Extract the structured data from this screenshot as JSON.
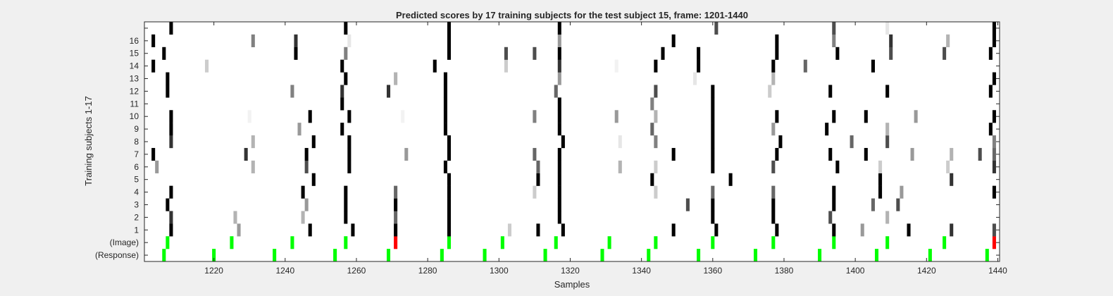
{
  "chart_data": {
    "type": "heatmap",
    "title": "Predicted scores by 17 training subjects for the test subject 15, frame: 1201-1440",
    "xlabel": "Samples",
    "ylabel": "Training subjects 1-17",
    "xlim": [
      1201,
      1440
    ],
    "x_ticks": [
      1220,
      1240,
      1260,
      1280,
      1300,
      1320,
      1340,
      1360,
      1380,
      1400,
      1420,
      1440
    ],
    "y_tick_labels": [
      "(Response)",
      "(Image)",
      "1",
      "2",
      "3",
      "4",
      "5",
      "6",
      "7",
      "8",
      "9",
      "10",
      "11",
      "12",
      "13",
      "14",
      "15",
      "16",
      ""
    ],
    "colors": {
      "background": "#ffffff",
      "plot_bg": "#ffffff",
      "stimulus_on": "#00ff00",
      "stimulus_red": "#ff0000",
      "high_score": "#000000"
    },
    "rows": [
      {
        "label": "(Response)",
        "kind": "stimulus",
        "marks": [
          [
            1206,
            "g"
          ],
          [
            1220,
            "g"
          ],
          [
            1237,
            "g"
          ],
          [
            1254,
            "g"
          ],
          [
            1269,
            "g"
          ],
          [
            1284,
            "g"
          ],
          [
            1296,
            "g"
          ],
          [
            1313,
            "g"
          ],
          [
            1329,
            "g"
          ],
          [
            1342,
            "g"
          ],
          [
            1356,
            "g"
          ],
          [
            1372,
            "g"
          ],
          [
            1390,
            "g"
          ],
          [
            1406,
            "g"
          ],
          [
            1421,
            "g"
          ],
          [
            1437,
            "g"
          ]
        ]
      },
      {
        "label": "(Image)",
        "kind": "stimulus",
        "marks": [
          [
            1207,
            "g"
          ],
          [
            1225,
            "g"
          ],
          [
            1242,
            "g"
          ],
          [
            1257,
            "g"
          ],
          [
            1271,
            "r"
          ],
          [
            1286,
            "g"
          ],
          [
            1301,
            "g"
          ],
          [
            1316,
            "g"
          ],
          [
            1331,
            "g"
          ],
          [
            1344,
            "g"
          ],
          [
            1360,
            "g"
          ],
          [
            1377,
            "g"
          ],
          [
            1394,
            "g"
          ],
          [
            1409,
            "g"
          ],
          [
            1425,
            "g"
          ],
          [
            1439,
            "r"
          ]
        ]
      },
      {
        "label": "1",
        "kind": "score",
        "marks": [
          [
            1208,
            1
          ],
          [
            1227,
            0.4
          ],
          [
            1247,
            1
          ],
          [
            1259,
            1
          ],
          [
            1271,
            1
          ],
          [
            1286,
            1
          ],
          [
            1303,
            0.2
          ],
          [
            1311,
            1
          ],
          [
            1318,
            1
          ],
          [
            1349,
            1
          ],
          [
            1361,
            1
          ],
          [
            1378,
            1
          ],
          [
            1394,
            1
          ],
          [
            1402,
            0.4
          ],
          [
            1415,
            1
          ],
          [
            1427,
            0.8
          ],
          [
            1439,
            0.7
          ]
        ]
      },
      {
        "label": "2",
        "kind": "score",
        "marks": [
          [
            1208,
            0.8
          ],
          [
            1226,
            0.3
          ],
          [
            1245,
            0.3
          ],
          [
            1257,
            1
          ],
          [
            1271,
            0.6
          ],
          [
            1286,
            1
          ],
          [
            1317,
            1
          ],
          [
            1360,
            1
          ],
          [
            1377,
            1
          ],
          [
            1393,
            0.7
          ],
          [
            1409,
            0.3
          ]
        ]
      },
      {
        "label": "3",
        "kind": "score",
        "marks": [
          [
            1207,
            1
          ],
          [
            1246,
            0.4
          ],
          [
            1257,
            1
          ],
          [
            1271,
            1
          ],
          [
            1286,
            1
          ],
          [
            1317,
            1
          ],
          [
            1353,
            0.7
          ],
          [
            1360,
            1
          ],
          [
            1377,
            1
          ],
          [
            1394,
            1
          ],
          [
            1405,
            0.6
          ],
          [
            1412,
            0.7
          ]
        ]
      },
      {
        "label": "4",
        "kind": "score",
        "marks": [
          [
            1208,
            1
          ],
          [
            1245,
            1
          ],
          [
            1257,
            1
          ],
          [
            1271,
            0.6
          ],
          [
            1286,
            1
          ],
          [
            1310,
            0.2
          ],
          [
            1317,
            1
          ],
          [
            1344,
            0.2
          ],
          [
            1360,
            0.6
          ],
          [
            1377,
            0.6
          ],
          [
            1394,
            1
          ],
          [
            1407,
            1
          ],
          [
            1413,
            0.4
          ],
          [
            1439,
            1
          ]
        ]
      },
      {
        "label": "5",
        "kind": "score",
        "marks": [
          [
            1248,
            1
          ],
          [
            1286,
            1
          ],
          [
            1311,
            1
          ],
          [
            1317,
            1
          ],
          [
            1343,
            1
          ],
          [
            1365,
            1
          ],
          [
            1407,
            1
          ],
          [
            1427,
            0.8
          ]
        ]
      },
      {
        "label": "6",
        "kind": "score",
        "marks": [
          [
            1204,
            0.4
          ],
          [
            1231,
            0.3
          ],
          [
            1246,
            0.7
          ],
          [
            1258,
            1
          ],
          [
            1285,
            1
          ],
          [
            1311,
            0.6
          ],
          [
            1317,
            1
          ],
          [
            1334,
            0.3
          ],
          [
            1344,
            0.2
          ],
          [
            1360,
            1
          ],
          [
            1377,
            0.7
          ],
          [
            1395,
            1
          ],
          [
            1407,
            0.2
          ],
          [
            1426,
            0.2
          ],
          [
            1439,
            0.8
          ]
        ]
      },
      {
        "label": "7",
        "kind": "score",
        "marks": [
          [
            1203,
            1
          ],
          [
            1229,
            0.8
          ],
          [
            1246,
            1
          ],
          [
            1258,
            1
          ],
          [
            1274,
            0.4
          ],
          [
            1286,
            1
          ],
          [
            1310,
            0.6
          ],
          [
            1317,
            1
          ],
          [
            1349,
            1
          ],
          [
            1360,
            1
          ],
          [
            1378,
            1
          ],
          [
            1393,
            1
          ],
          [
            1403,
            1
          ],
          [
            1416,
            0.4
          ],
          [
            1427,
            0.3
          ],
          [
            1435,
            0.7
          ],
          [
            1439,
            0.6
          ]
        ]
      },
      {
        "label": "8",
        "kind": "score",
        "marks": [
          [
            1208,
            0.8
          ],
          [
            1231,
            0.3
          ],
          [
            1248,
            1
          ],
          [
            1258,
            1
          ],
          [
            1286,
            1
          ],
          [
            1318,
            1
          ],
          [
            1334,
            0.1
          ],
          [
            1344,
            0.5
          ],
          [
            1360,
            1
          ],
          [
            1379,
            1
          ],
          [
            1399,
            0.6
          ],
          [
            1409,
            0.7
          ],
          [
            1439,
            0.5
          ]
        ]
      },
      {
        "label": "9",
        "kind": "score",
        "marks": [
          [
            1208,
            1
          ],
          [
            1244,
            0.4
          ],
          [
            1256,
            1
          ],
          [
            1285,
            1
          ],
          [
            1317,
            1
          ],
          [
            1343,
            0.6
          ],
          [
            1360,
            1
          ],
          [
            1377,
            0.4
          ],
          [
            1392,
            1
          ],
          [
            1409,
            0.3
          ],
          [
            1438,
            1
          ]
        ]
      },
      {
        "label": "10",
        "kind": "score",
        "marks": [
          [
            1208,
            1
          ],
          [
            1230,
            0.05
          ],
          [
            1247,
            1
          ],
          [
            1258,
            1
          ],
          [
            1273,
            0.05
          ],
          [
            1285,
            1
          ],
          [
            1310,
            0.5
          ],
          [
            1317,
            1
          ],
          [
            1333,
            0.4
          ],
          [
            1344,
            0.3
          ],
          [
            1360,
            1
          ],
          [
            1378,
            1
          ],
          [
            1394,
            1
          ],
          [
            1403,
            1
          ],
          [
            1417,
            0.4
          ],
          [
            1439,
            1
          ]
        ]
      },
      {
        "label": "11",
        "kind": "score",
        "marks": [
          [
            1256,
            1
          ],
          [
            1285,
            1
          ],
          [
            1317,
            1
          ],
          [
            1343,
            0.5
          ],
          [
            1360,
            1
          ]
        ]
      },
      {
        "label": "12",
        "kind": "score",
        "marks": [
          [
            1207,
            1
          ],
          [
            1242,
            0.5
          ],
          [
            1256,
            0.8
          ],
          [
            1269,
            0.8
          ],
          [
            1285,
            1
          ],
          [
            1316,
            0.6
          ],
          [
            1344,
            0.7
          ],
          [
            1360,
            1
          ],
          [
            1376,
            0.2
          ],
          [
            1393,
            1
          ],
          [
            1409,
            1
          ],
          [
            1438,
            1
          ]
        ]
      },
      {
        "label": "13",
        "kind": "score",
        "marks": [
          [
            1207,
            1
          ],
          [
            1257,
            1
          ],
          [
            1271,
            0.3
          ],
          [
            1285,
            1
          ],
          [
            1317,
            0.4
          ],
          [
            1355,
            0.1
          ],
          [
            1377,
            0.3
          ],
          [
            1439,
            1
          ]
        ]
      },
      {
        "label": "14",
        "kind": "score",
        "marks": [
          [
            1203,
            1
          ],
          [
            1218,
            0.2
          ],
          [
            1256,
            1
          ],
          [
            1282,
            1
          ],
          [
            1302,
            0.2
          ],
          [
            1317,
            0.8
          ],
          [
            1333,
            0.05
          ],
          [
            1344,
            1
          ],
          [
            1356,
            1
          ],
          [
            1377,
            1
          ],
          [
            1386,
            0.6
          ],
          [
            1405,
            1
          ]
        ]
      },
      {
        "label": "15",
        "kind": "score",
        "marks": [
          [
            1206,
            1
          ],
          [
            1243,
            1
          ],
          [
            1257,
            0.5
          ],
          [
            1286,
            1
          ],
          [
            1302,
            0.7
          ],
          [
            1310,
            0.7
          ],
          [
            1317,
            1
          ],
          [
            1346,
            1
          ],
          [
            1356,
            1
          ],
          [
            1378,
            1
          ],
          [
            1395,
            1
          ],
          [
            1410,
            0.7
          ],
          [
            1425,
            0.7
          ],
          [
            1438,
            1
          ]
        ]
      },
      {
        "label": "16",
        "kind": "score",
        "marks": [
          [
            1203,
            1
          ],
          [
            1231,
            0.5
          ],
          [
            1243,
            0.8
          ],
          [
            1258,
            0.1
          ],
          [
            1286,
            1
          ],
          [
            1317,
            0.4
          ],
          [
            1349,
            1
          ],
          [
            1378,
            1
          ],
          [
            1394,
            0.5
          ],
          [
            1410,
            0.8
          ],
          [
            1426,
            0.3
          ],
          [
            1439,
            1
          ]
        ]
      },
      {
        "label": "",
        "kind": "score",
        "marks": [
          [
            1208,
            1
          ],
          [
            1257,
            1
          ],
          [
            1286,
            1
          ],
          [
            1317,
            1
          ],
          [
            1361,
            0.7
          ],
          [
            1394,
            0.7
          ],
          [
            1409,
            0.1
          ],
          [
            1439,
            1
          ]
        ]
      }
    ]
  }
}
